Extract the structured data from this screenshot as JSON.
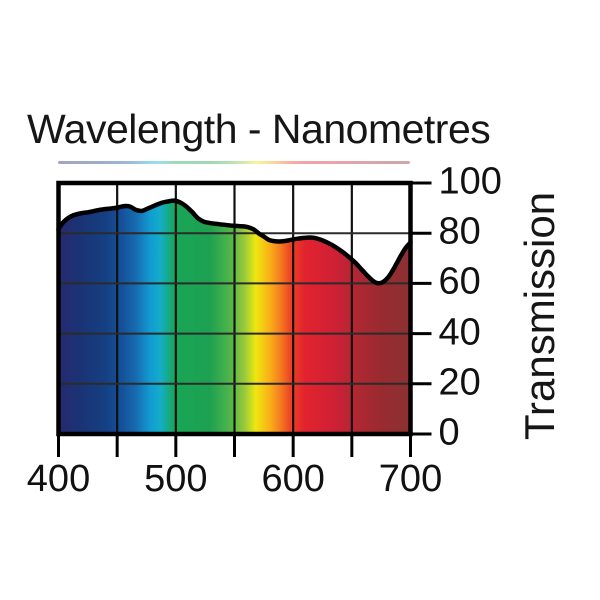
{
  "header": {
    "title": "Wavelength - Nanometres"
  },
  "y_axis": {
    "title": "Transmission"
  },
  "colors": {
    "background": "#ffffff",
    "curve": "#000000",
    "border": "#000000",
    "grid_vertical": "#111111",
    "grid_horizontal": "#2b2b2b",
    "text": "#141414"
  },
  "chart_data": {
    "type": "area",
    "title": "Wavelength - Nanometres",
    "xlabel": "Wavelength - Nanometres",
    "ylabel": "Transmission",
    "x_unit": "nm",
    "xlim": [
      400,
      700
    ],
    "ylim": [
      0,
      100
    ],
    "grid": true,
    "legend": false,
    "x_ticks": [
      400,
      450,
      500,
      550,
      600,
      650,
      700
    ],
    "x_label_values": [
      400,
      500,
      600,
      700
    ],
    "x_tick_labels": [
      "400",
      "500",
      "600",
      "700"
    ],
    "y_ticks": [
      100,
      80,
      60,
      40,
      20,
      0
    ],
    "y_tick_labels": [
      "100",
      "80",
      "60",
      "40",
      "20",
      "0"
    ],
    "area_fill": "visible-light-spectrum-gradient",
    "spectrum_gradient": [
      [
        "0%",
        "#27296f"
      ],
      [
        "6%",
        "#1b3375"
      ],
      [
        "13%",
        "#153f81"
      ],
      [
        "18%",
        "#15519a"
      ],
      [
        "22%",
        "#176bb0"
      ],
      [
        "26%",
        "#119bd2"
      ],
      [
        "29%",
        "#14aec7"
      ],
      [
        "33%",
        "#18a657"
      ],
      [
        "43%",
        "#1da150"
      ],
      [
        "49%",
        "#52b649"
      ],
      [
        "53%",
        "#9dca3b"
      ],
      [
        "56%",
        "#eee70f"
      ],
      [
        "60%",
        "#f9b017"
      ],
      [
        "63%",
        "#f47d20"
      ],
      [
        "66%",
        "#ee4123"
      ],
      [
        "70%",
        "#e2232f"
      ],
      [
        "78%",
        "#d02034"
      ],
      [
        "84%",
        "#b22733"
      ],
      [
        "92%",
        "#982b30"
      ],
      [
        "100%",
        "#8c3133"
      ]
    ],
    "series": [
      {
        "name": "Transmission (%)",
        "points": [
          [
            400,
            81.5
          ],
          [
            403,
            83.8
          ],
          [
            407,
            85.6
          ],
          [
            411,
            86.8
          ],
          [
            415,
            87.5
          ],
          [
            420,
            88.0
          ],
          [
            426,
            88.4
          ],
          [
            432,
            89.0
          ],
          [
            438,
            89.5
          ],
          [
            444,
            89.8
          ],
          [
            450,
            90.2
          ],
          [
            456,
            90.8
          ],
          [
            461,
            90.6
          ],
          [
            466,
            89.3
          ],
          [
            471,
            88.9
          ],
          [
            476,
            89.8
          ],
          [
            482,
            91.0
          ],
          [
            488,
            92.1
          ],
          [
            494,
            92.7
          ],
          [
            499,
            93.0
          ],
          [
            504,
            92.2
          ],
          [
            509,
            90.6
          ],
          [
            514,
            88.4
          ],
          [
            519,
            85.9
          ],
          [
            524,
            84.6
          ],
          [
            530,
            84.0
          ],
          [
            537,
            83.6
          ],
          [
            544,
            83.2
          ],
          [
            551,
            82.9
          ],
          [
            558,
            82.7
          ],
          [
            563,
            82.2
          ],
          [
            567,
            81.3
          ],
          [
            571,
            79.8
          ],
          [
            575,
            78.7
          ],
          [
            579,
            77.4
          ],
          [
            583,
            76.9
          ],
          [
            588,
            76.7
          ],
          [
            593,
            76.9
          ],
          [
            599,
            77.4
          ],
          [
            605,
            77.9
          ],
          [
            611,
            78.2
          ],
          [
            617,
            78.2
          ],
          [
            623,
            77.5
          ],
          [
            629,
            76.3
          ],
          [
            635,
            74.8
          ],
          [
            641,
            72.9
          ],
          [
            647,
            70.7
          ],
          [
            653,
            68.2
          ],
          [
            659,
            65.2
          ],
          [
            664,
            62.7
          ],
          [
            668,
            61.0
          ],
          [
            672,
            60.1
          ],
          [
            676,
            60.4
          ],
          [
            680,
            61.9
          ],
          [
            684,
            64.5
          ],
          [
            688,
            67.8
          ],
          [
            692,
            71.2
          ],
          [
            696,
            74.2
          ],
          [
            700,
            76.3
          ]
        ]
      }
    ]
  }
}
